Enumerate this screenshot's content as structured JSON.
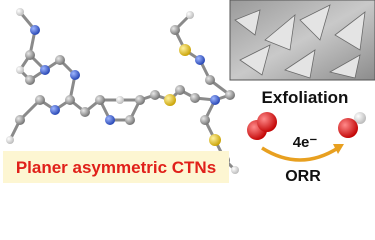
{
  "labels": {
    "title": "Planer asymmetric CTNs",
    "process": "Exfoliation",
    "electrons": "4e⁻",
    "reaction": "ORR"
  }
}
